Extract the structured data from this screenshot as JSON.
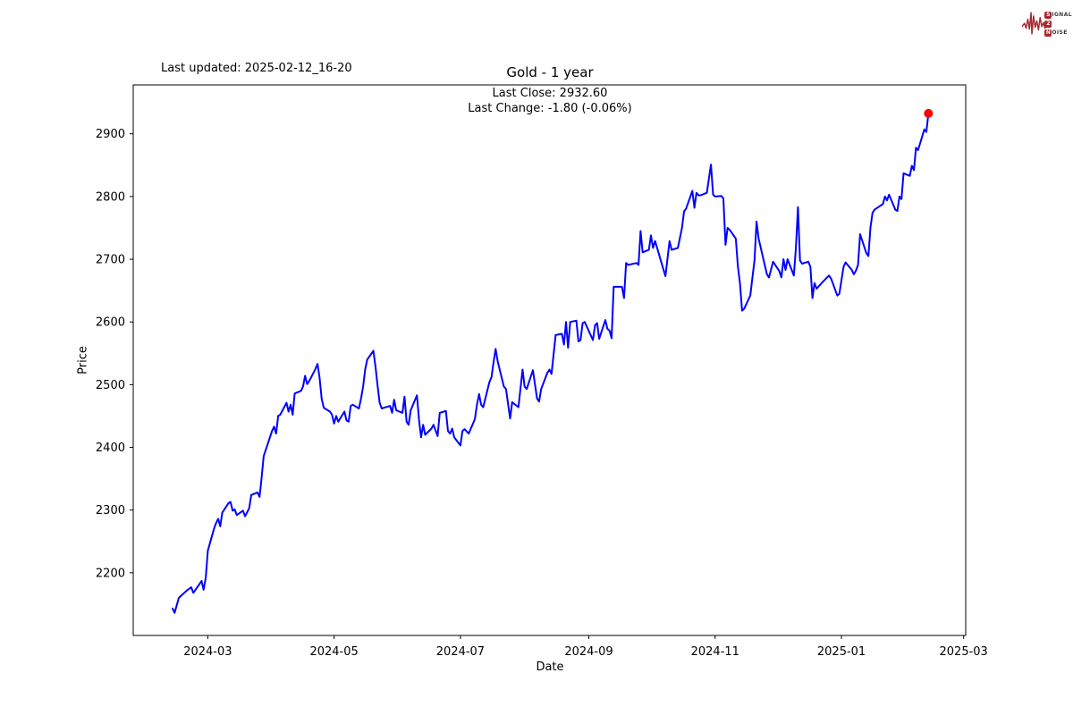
{
  "annotations": {
    "last_updated": "Last updated: 2025-02-12_16-20"
  },
  "logo": {
    "color": "#a5282d",
    "text_color": "#3b3b3b",
    "row1_badge": "S",
    "row1_rest": "IGNAL",
    "row2_badge": "2",
    "row3_badge": "N",
    "row3_rest": "OISE"
  },
  "chart_data": {
    "type": "line",
    "title": "Gold - 1 year",
    "subtitle_line1": "Last Close: 2932.60",
    "subtitle_line2": "Last Change: -1.80 (-0.06%)",
    "last_close": "2932.60",
    "last_change": "-1.80",
    "last_change_pct": "-0.06%",
    "xlabel": "Date",
    "ylabel": "Price",
    "line_color": "#0000ff",
    "marker_color": "#ff0000",
    "axis_color": "#000000",
    "xlim": [
      "2024-01-25",
      "2025-03-02"
    ],
    "ylim": [
      2100,
      2978
    ],
    "grid": false,
    "x_ticks": [
      {
        "date": "2024-03-01",
        "label": "2024-03"
      },
      {
        "date": "2024-05-01",
        "label": "2024-05"
      },
      {
        "date": "2024-07-01",
        "label": "2024-07"
      },
      {
        "date": "2024-09-01",
        "label": "2024-09"
      },
      {
        "date": "2024-11-01",
        "label": "2024-11"
      },
      {
        "date": "2025-01-01",
        "label": "2025-01"
      },
      {
        "date": "2025-03-01",
        "label": "2025-03"
      }
    ],
    "y_ticks": [
      2200,
      2300,
      2400,
      2500,
      2600,
      2700,
      2800,
      2900
    ],
    "series": [
      {
        "name": "Gold",
        "points": [
          [
            "2024-02-13",
            2143
          ],
          [
            "2024-02-14",
            2136
          ],
          [
            "2024-02-16",
            2160
          ],
          [
            "2024-02-20",
            2172
          ],
          [
            "2024-02-22",
            2177
          ],
          [
            "2024-02-23",
            2168
          ],
          [
            "2024-02-26",
            2182
          ],
          [
            "2024-02-27",
            2187
          ],
          [
            "2024-02-28",
            2173
          ],
          [
            "2024-02-29",
            2192
          ],
          [
            "2024-03-01",
            2235
          ],
          [
            "2024-03-04",
            2270
          ],
          [
            "2024-03-05",
            2279
          ],
          [
            "2024-03-06",
            2286
          ],
          [
            "2024-03-07",
            2274
          ],
          [
            "2024-03-08",
            2296
          ],
          [
            "2024-03-11",
            2311
          ],
          [
            "2024-03-12",
            2313
          ],
          [
            "2024-03-13",
            2299
          ],
          [
            "2024-03-14",
            2301
          ],
          [
            "2024-03-15",
            2292
          ],
          [
            "2024-03-18",
            2299
          ],
          [
            "2024-03-19",
            2290
          ],
          [
            "2024-03-21",
            2303
          ],
          [
            "2024-03-22",
            2324
          ],
          [
            "2024-03-25",
            2328
          ],
          [
            "2024-03-26",
            2321
          ],
          [
            "2024-03-27",
            2352
          ],
          [
            "2024-03-28",
            2386
          ],
          [
            "2024-04-01",
            2426
          ],
          [
            "2024-04-02",
            2433
          ],
          [
            "2024-04-03",
            2422
          ],
          [
            "2024-04-04",
            2450
          ],
          [
            "2024-04-05",
            2452
          ],
          [
            "2024-04-08",
            2471
          ],
          [
            "2024-04-09",
            2457
          ],
          [
            "2024-04-10",
            2468
          ],
          [
            "2024-04-11",
            2452
          ],
          [
            "2024-04-12",
            2486
          ],
          [
            "2024-04-15",
            2490
          ],
          [
            "2024-04-16",
            2497
          ],
          [
            "2024-04-17",
            2514
          ],
          [
            "2024-04-18",
            2501
          ],
          [
            "2024-04-19",
            2506
          ],
          [
            "2024-04-22",
            2525
          ],
          [
            "2024-04-23",
            2533
          ],
          [
            "2024-04-24",
            2511
          ],
          [
            "2024-04-25",
            2478
          ],
          [
            "2024-04-26",
            2463
          ],
          [
            "2024-04-29",
            2457
          ],
          [
            "2024-04-30",
            2452
          ],
          [
            "2024-05-01",
            2438
          ],
          [
            "2024-05-02",
            2450
          ],
          [
            "2024-05-03",
            2441
          ],
          [
            "2024-05-06",
            2457
          ],
          [
            "2024-05-07",
            2443
          ],
          [
            "2024-05-08",
            2441
          ],
          [
            "2024-05-09",
            2466
          ],
          [
            "2024-05-10",
            2468
          ],
          [
            "2024-05-13",
            2462
          ],
          [
            "2024-05-14",
            2478
          ],
          [
            "2024-05-15",
            2497
          ],
          [
            "2024-05-16",
            2524
          ],
          [
            "2024-05-17",
            2540
          ],
          [
            "2024-05-20",
            2554
          ],
          [
            "2024-05-21",
            2528
          ],
          [
            "2024-05-22",
            2498
          ],
          [
            "2024-05-23",
            2471
          ],
          [
            "2024-05-24",
            2462
          ],
          [
            "2024-05-28",
            2466
          ],
          [
            "2024-05-29",
            2455
          ],
          [
            "2024-05-30",
            2476
          ],
          [
            "2024-05-31",
            2459
          ],
          [
            "2024-06-03",
            2455
          ],
          [
            "2024-06-04",
            2481
          ],
          [
            "2024-06-05",
            2441
          ],
          [
            "2024-06-06",
            2436
          ],
          [
            "2024-06-07",
            2459
          ],
          [
            "2024-06-10",
            2483
          ],
          [
            "2024-06-11",
            2444
          ],
          [
            "2024-06-12",
            2416
          ],
          [
            "2024-06-13",
            2436
          ],
          [
            "2024-06-14",
            2420
          ],
          [
            "2024-06-17",
            2430
          ],
          [
            "2024-06-18",
            2436
          ],
          [
            "2024-06-20",
            2418
          ],
          [
            "2024-06-21",
            2455
          ],
          [
            "2024-06-24",
            2458
          ],
          [
            "2024-06-25",
            2426
          ],
          [
            "2024-06-26",
            2422
          ],
          [
            "2024-06-27",
            2430
          ],
          [
            "2024-06-28",
            2416
          ],
          [
            "2024-07-01",
            2403
          ],
          [
            "2024-07-02",
            2426
          ],
          [
            "2024-07-03",
            2429
          ],
          [
            "2024-07-05",
            2422
          ],
          [
            "2024-07-08",
            2445
          ],
          [
            "2024-07-09",
            2468
          ],
          [
            "2024-07-10",
            2485
          ],
          [
            "2024-07-11",
            2468
          ],
          [
            "2024-07-12",
            2464
          ],
          [
            "2024-07-15",
            2504
          ],
          [
            "2024-07-16",
            2512
          ],
          [
            "2024-07-17",
            2536
          ],
          [
            "2024-07-18",
            2557
          ],
          [
            "2024-07-19",
            2537
          ],
          [
            "2024-07-22",
            2497
          ],
          [
            "2024-07-23",
            2493
          ],
          [
            "2024-07-25",
            2446
          ],
          [
            "2024-07-26",
            2472
          ],
          [
            "2024-07-29",
            2464
          ],
          [
            "2024-07-31",
            2524
          ],
          [
            "2024-08-01",
            2497
          ],
          [
            "2024-08-02",
            2493
          ],
          [
            "2024-08-05",
            2523
          ],
          [
            "2024-08-07",
            2478
          ],
          [
            "2024-08-08",
            2473
          ],
          [
            "2024-08-09",
            2493
          ],
          [
            "2024-08-12",
            2519
          ],
          [
            "2024-08-13",
            2524
          ],
          [
            "2024-08-14",
            2517
          ],
          [
            "2024-08-16",
            2579
          ],
          [
            "2024-08-19",
            2581
          ],
          [
            "2024-08-20",
            2564
          ],
          [
            "2024-08-21",
            2600
          ],
          [
            "2024-08-22",
            2559
          ],
          [
            "2024-08-23",
            2600
          ],
          [
            "2024-08-26",
            2602
          ],
          [
            "2024-08-27",
            2569
          ],
          [
            "2024-08-28",
            2571
          ],
          [
            "2024-08-29",
            2598
          ],
          [
            "2024-08-30",
            2600
          ],
          [
            "2024-09-03",
            2571
          ],
          [
            "2024-09-04",
            2595
          ],
          [
            "2024-09-05",
            2598
          ],
          [
            "2024-09-06",
            2573
          ],
          [
            "2024-09-09",
            2603
          ],
          [
            "2024-09-10",
            2589
          ],
          [
            "2024-09-11",
            2586
          ],
          [
            "2024-09-12",
            2574
          ],
          [
            "2024-09-13",
            2656
          ],
          [
            "2024-09-16",
            2656
          ],
          [
            "2024-09-17",
            2656
          ],
          [
            "2024-09-18",
            2638
          ],
          [
            "2024-09-19",
            2694
          ],
          [
            "2024-09-20",
            2691
          ],
          [
            "2024-09-24",
            2694
          ],
          [
            "2024-09-25",
            2691
          ],
          [
            "2024-09-26",
            2745
          ],
          [
            "2024-09-27",
            2711
          ],
          [
            "2024-09-30",
            2715
          ],
          [
            "2024-10-01",
            2738
          ],
          [
            "2024-10-02",
            2718
          ],
          [
            "2024-10-03",
            2729
          ],
          [
            "2024-10-04",
            2718
          ],
          [
            "2024-10-07",
            2684
          ],
          [
            "2024-10-08",
            2673
          ],
          [
            "2024-10-10",
            2729
          ],
          [
            "2024-10-11",
            2715
          ],
          [
            "2024-10-14",
            2718
          ],
          [
            "2024-10-16",
            2750
          ],
          [
            "2024-10-17",
            2776
          ],
          [
            "2024-10-18",
            2781
          ],
          [
            "2024-10-21",
            2809
          ],
          [
            "2024-10-22",
            2782
          ],
          [
            "2024-10-23",
            2806
          ],
          [
            "2024-10-24",
            2802
          ],
          [
            "2024-10-25",
            2802
          ],
          [
            "2024-10-28",
            2806
          ],
          [
            "2024-10-30",
            2851
          ],
          [
            "2024-10-31",
            2803
          ],
          [
            "2024-11-01",
            2800
          ],
          [
            "2024-11-04",
            2801
          ],
          [
            "2024-11-05",
            2797
          ],
          [
            "2024-11-06",
            2723
          ],
          [
            "2024-11-07",
            2750
          ],
          [
            "2024-11-08",
            2747
          ],
          [
            "2024-11-11",
            2733
          ],
          [
            "2024-11-12",
            2689
          ],
          [
            "2024-11-13",
            2661
          ],
          [
            "2024-11-14",
            2618
          ],
          [
            "2024-11-15",
            2621
          ],
          [
            "2024-11-18",
            2642
          ],
          [
            "2024-11-19",
            2671
          ],
          [
            "2024-11-20",
            2698
          ],
          [
            "2024-11-21",
            2760
          ],
          [
            "2024-11-22",
            2733
          ],
          [
            "2024-11-25",
            2690
          ],
          [
            "2024-11-26",
            2676
          ],
          [
            "2024-11-27",
            2671
          ],
          [
            "2024-11-29",
            2696
          ],
          [
            "2024-12-02",
            2681
          ],
          [
            "2024-12-03",
            2671
          ],
          [
            "2024-12-04",
            2700
          ],
          [
            "2024-12-05",
            2683
          ],
          [
            "2024-12-06",
            2700
          ],
          [
            "2024-12-09",
            2674
          ],
          [
            "2024-12-10",
            2718
          ],
          [
            "2024-12-11",
            2783
          ],
          [
            "2024-12-12",
            2698
          ],
          [
            "2024-12-13",
            2693
          ],
          [
            "2024-12-16",
            2696
          ],
          [
            "2024-12-17",
            2688
          ],
          [
            "2024-12-18",
            2638
          ],
          [
            "2024-12-19",
            2662
          ],
          [
            "2024-12-20",
            2653
          ],
          [
            "2024-12-23",
            2664
          ],
          [
            "2024-12-26",
            2674
          ],
          [
            "2024-12-27",
            2669
          ],
          [
            "2024-12-30",
            2642
          ],
          [
            "2024-12-31",
            2645
          ],
          [
            "2025-01-02",
            2688
          ],
          [
            "2025-01-03",
            2695
          ],
          [
            "2025-01-06",
            2683
          ],
          [
            "2025-01-07",
            2676
          ],
          [
            "2025-01-08",
            2682
          ],
          [
            "2025-01-09",
            2691
          ],
          [
            "2025-01-10",
            2740
          ],
          [
            "2025-01-13",
            2710
          ],
          [
            "2025-01-14",
            2705
          ],
          [
            "2025-01-15",
            2751
          ],
          [
            "2025-01-16",
            2774
          ],
          [
            "2025-01-17",
            2779
          ],
          [
            "2025-01-21",
            2788
          ],
          [
            "2025-01-22",
            2800
          ],
          [
            "2025-01-23",
            2794
          ],
          [
            "2025-01-24",
            2803
          ],
          [
            "2025-01-27",
            2779
          ],
          [
            "2025-01-28",
            2777
          ],
          [
            "2025-01-29",
            2800
          ],
          [
            "2025-01-30",
            2796
          ],
          [
            "2025-01-31",
            2837
          ],
          [
            "2025-02-03",
            2833
          ],
          [
            "2025-02-04",
            2849
          ],
          [
            "2025-02-05",
            2842
          ],
          [
            "2025-02-06",
            2878
          ],
          [
            "2025-02-07",
            2874
          ],
          [
            "2025-02-10",
            2907
          ],
          [
            "2025-02-11",
            2903
          ],
          [
            "2025-02-12",
            2932.6
          ]
        ]
      }
    ]
  }
}
